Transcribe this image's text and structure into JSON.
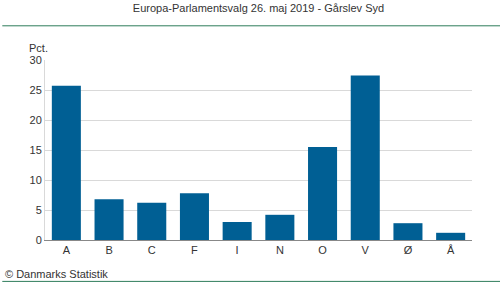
{
  "chart_data": {
    "type": "bar",
    "title": "Europa-Parlamentsvalg 26. maj 2019 - Gårslev Syd",
    "y_label": "Pct.",
    "annotations": [
      "© Danmarks Statistik"
    ],
    "categories": [
      "A",
      "B",
      "C",
      "F",
      "I",
      "N",
      "O",
      "V",
      "Ø",
      "Å"
    ],
    "values": [
      25.7,
      6.8,
      6.2,
      7.8,
      3.0,
      4.2,
      15.5,
      27.4,
      2.8,
      1.2
    ],
    "color": "#005f94",
    "ylim": [
      0,
      30
    ],
    "yticks": [
      0,
      5,
      10,
      15,
      20,
      25,
      30
    ],
    "grid": true
  }
}
